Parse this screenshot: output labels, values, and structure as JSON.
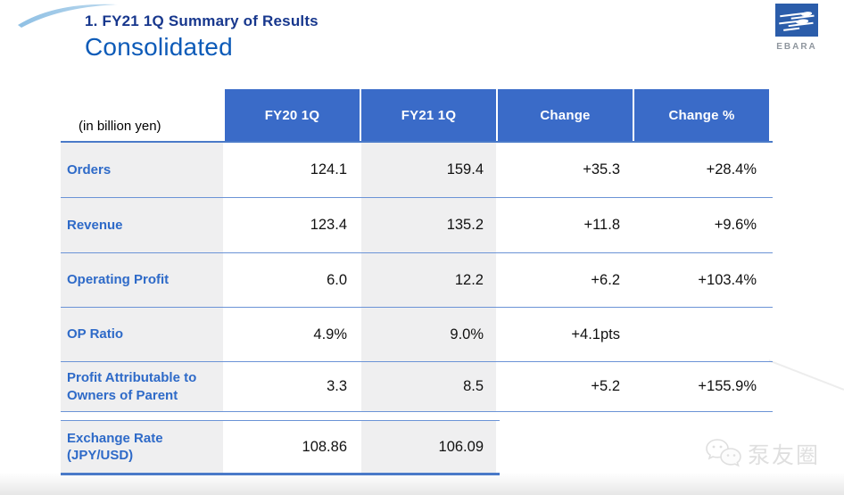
{
  "header": {
    "title": "1. FY21 1Q Summary of Results",
    "subtitle": "Consolidated",
    "logo_text": "EBARA"
  },
  "table": {
    "unit_label": "(in billion yen)",
    "columns": [
      "FY20 1Q",
      "FY21 1Q",
      "Change",
      "Change %"
    ],
    "rows": [
      {
        "label": "Orders",
        "values": [
          "124.1",
          "159.4",
          "+35.3",
          "+28.4%"
        ]
      },
      {
        "label": "Revenue",
        "values": [
          "123.4",
          "135.2",
          "+11.8",
          "+9.6%"
        ]
      },
      {
        "label": "Operating Profit",
        "values": [
          "6.0",
          "12.2",
          "+6.2",
          "+103.4%"
        ]
      },
      {
        "label": "OP Ratio",
        "values": [
          "4.9%",
          "9.0%",
          "+4.1pts",
          ""
        ]
      },
      {
        "label": "Profit Attributable to Owners of Parent",
        "values": [
          "3.3",
          "8.5",
          "+5.2",
          "+155.9%"
        ]
      },
      {
        "label": "Exchange Rate (JPY/USD)",
        "values": [
          "108.86",
          "106.09"
        ],
        "detached": true
      }
    ]
  },
  "watermark": {
    "text": "泵友圈"
  },
  "colors": {
    "header_blue": "#3a6bc8",
    "title_navy": "#17378d",
    "subtitle_blue": "#0d5bb8",
    "label_blue": "#2e6ac8",
    "line_blue": "#6b93d6",
    "line_strong": "#4a7ac8",
    "cell_gray": "#efeff0",
    "logo_blue": "#2b5daa",
    "value_black": "#111111"
  }
}
